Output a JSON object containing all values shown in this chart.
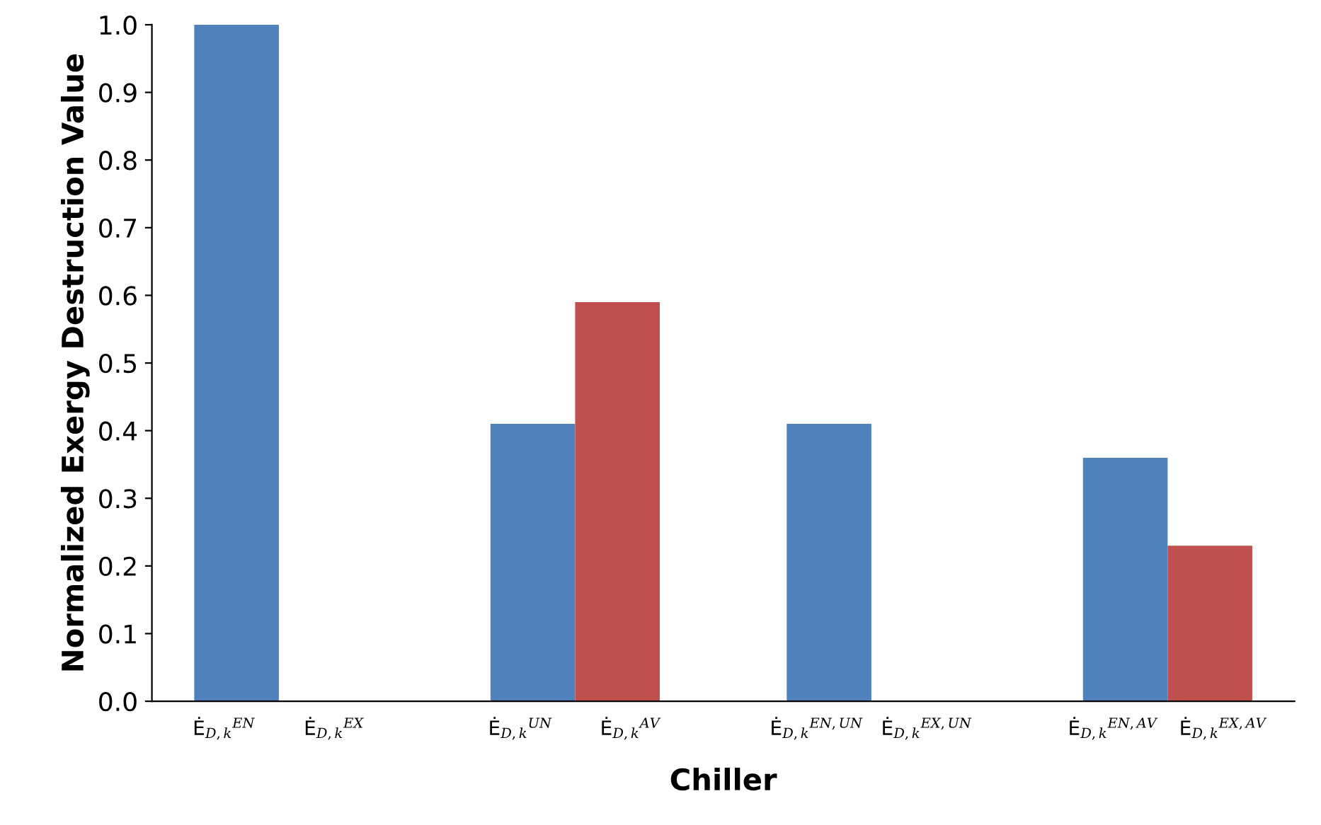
{
  "chart_data": {
    "type": "bar",
    "xlabel": "Chiller",
    "ylabel": "Normalized Exergy Destruction Value",
    "categories": [
      "Ė$_{D,k}$$^{EN}$",
      "Ė$_{D,k}$$^{EX}$",
      "Ė$_{D,k}$$^{UN}$",
      "Ė$_{D,k}$$^{AV}$",
      "Ė$_{D,k}$$^{EN,UN}$",
      "Ė$_{D,k}$$^{EX,UN}$",
      "Ė$_{D,k}$$^{EN,AV}$",
      "Ė$_{D,k}$$^{EX,AV}$"
    ],
    "values": [
      1.0,
      0,
      0.41,
      0.59,
      0.41,
      0,
      0.36,
      0.23
    ],
    "colors": [
      "#4f81bd",
      "#c0504d",
      "#4f81bd",
      "#c0504d",
      "#4f81bd",
      "#c0504d",
      "#4f81bd",
      "#c0504d"
    ],
    "ylim": [
      0,
      1.0
    ],
    "yticks": [
      {
        "value": 0,
        "label": "0.0"
      },
      {
        "value": 0.1,
        "label": "0.1"
      },
      {
        "value": 0.2,
        "label": "0.2"
      },
      {
        "value": 0.3,
        "label": "0.3"
      },
      {
        "value": 0.4,
        "label": "0.4"
      },
      {
        "value": 0.5,
        "label": "0.5"
      },
      {
        "value": 0.6,
        "label": "0.6"
      },
      {
        "value": 0.7,
        "label": "0.7"
      },
      {
        "value": 0.8,
        "label": "0.8"
      },
      {
        "value": 0.9,
        "label": "0.9"
      },
      {
        "value": 1.0,
        "label": "1.0"
      }
    ],
    "grid": false
  }
}
